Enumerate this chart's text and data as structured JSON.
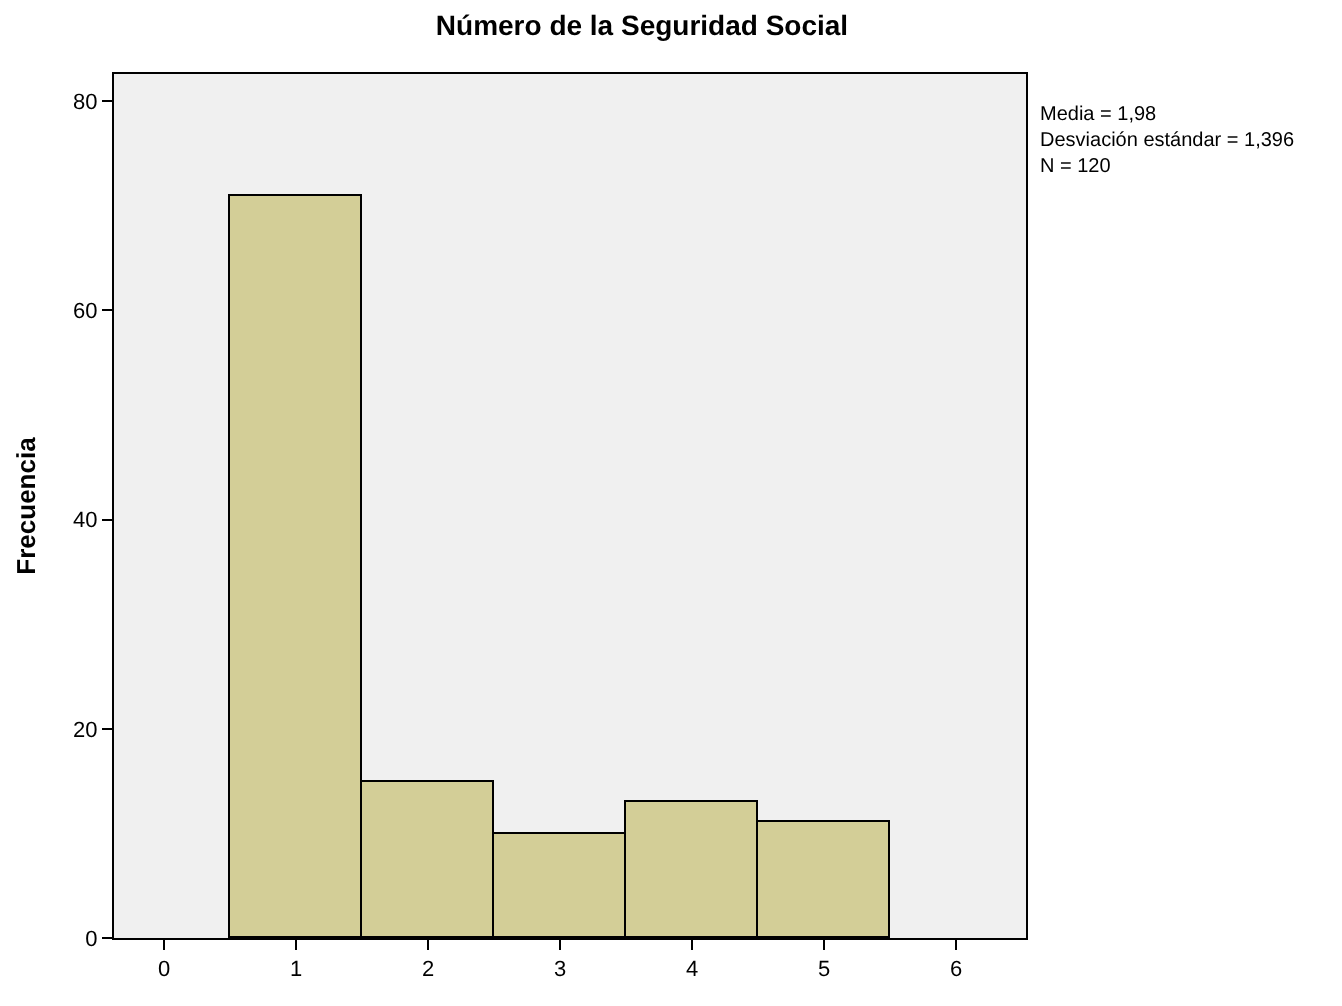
{
  "chart_data": {
    "type": "histogram",
    "title": "Número de la Seguridad Social",
    "ylabel": "Frecuencia",
    "bins": [
      0.5,
      1.5,
      2.5,
      3.5,
      4.5,
      5.5
    ],
    "values": [
      71,
      15,
      10,
      13,
      11
    ],
    "color": "#d3ce97",
    "xlim": [
      -0.38,
      6.53
    ],
    "xticks": [
      0,
      1,
      2,
      3,
      4,
      5,
      6
    ],
    "ylim": [
      0,
      82.6
    ],
    "yticks": [
      0,
      20,
      40,
      60,
      80
    ],
    "grid": false,
    "annotations": [
      "Media = 1,98\nDesviación estándar = 1,396\nN = 120"
    ]
  }
}
